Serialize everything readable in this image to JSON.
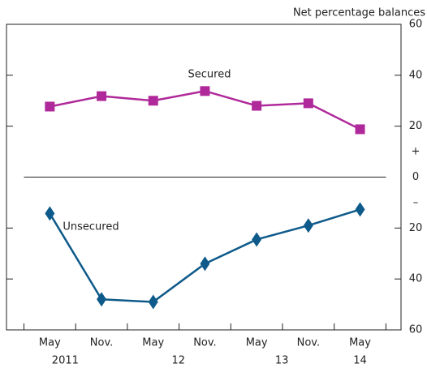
{
  "chart_data": {
    "type": "line",
    "y_label": "Net percentage balances",
    "categories": [
      "May",
      "Nov.",
      "May",
      "Nov.",
      "May",
      "Nov.",
      "May"
    ],
    "x_groups": [
      "2011",
      "12",
      "13",
      "14"
    ],
    "series": [
      {
        "name": "Secured",
        "color": "#b0299a",
        "marker": "square",
        "values": [
          27.7,
          31.8,
          30,
          33.8,
          28,
          29,
          18.8
        ]
      },
      {
        "name": "Unsecured",
        "color": "#0e5a8a",
        "marker": "diamond",
        "values": [
          -14.3,
          -48,
          -49,
          -34,
          -24.5,
          -19,
          -12.7
        ]
      }
    ],
    "ylim": [
      -60,
      60
    ],
    "yticks": [
      {
        "value": -60,
        "label": "60"
      },
      {
        "value": -40,
        "label": "40"
      },
      {
        "value": -20,
        "label": "20"
      },
      0,
      20,
      40,
      60
    ],
    "annotations": [
      "+",
      "–"
    ]
  }
}
